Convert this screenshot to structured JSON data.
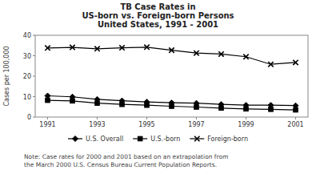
{
  "chart_data": {
    "type": "line",
    "title": "TB Case Rates in\nUS-born vs. Foreign-born Persons\nUnited States, 1991 - 2001",
    "y_label": "Cases per 100,000",
    "x": [
      1991,
      1992,
      1993,
      1994,
      1995,
      1996,
      1997,
      1998,
      1999,
      2000,
      2001
    ],
    "series": [
      {
        "name": "U.S. Overall",
        "color": "#000000",
        "marker": "diamond",
        "values": [
          10.4,
          9.9,
          8.7,
          8.0,
          7.4,
          7.0,
          6.8,
          6.2,
          5.8,
          5.8,
          5.6
        ]
      },
      {
        "name": "U.S.-born",
        "color": "#000000",
        "marker": "square",
        "values": [
          8.2,
          7.9,
          6.8,
          6.2,
          5.8,
          5.3,
          4.9,
          4.4,
          4.0,
          3.8,
          3.5
        ]
      },
      {
        "name": "Foreign-born",
        "color": "#000000",
        "marker": "x",
        "values": [
          33.8,
          34.1,
          33.4,
          33.9,
          34.2,
          32.7,
          31.3,
          30.8,
          29.5,
          25.8,
          26.7
        ]
      }
    ],
    "xlim": [
      1990.5,
      2001.5
    ],
    "xticks": [
      1991,
      1993,
      1995,
      1997,
      1999,
      2001
    ],
    "ylim": [
      0,
      40
    ],
    "yticks": [
      0,
      10,
      20,
      30,
      40
    ],
    "grid": false,
    "legend": "bottom",
    "annotations": [
      "Note: Case rates for 2000 and 2001 based on an extrapolation from\nthe March 2000 U.S. Census Bureau Current Population Reports."
    ]
  }
}
